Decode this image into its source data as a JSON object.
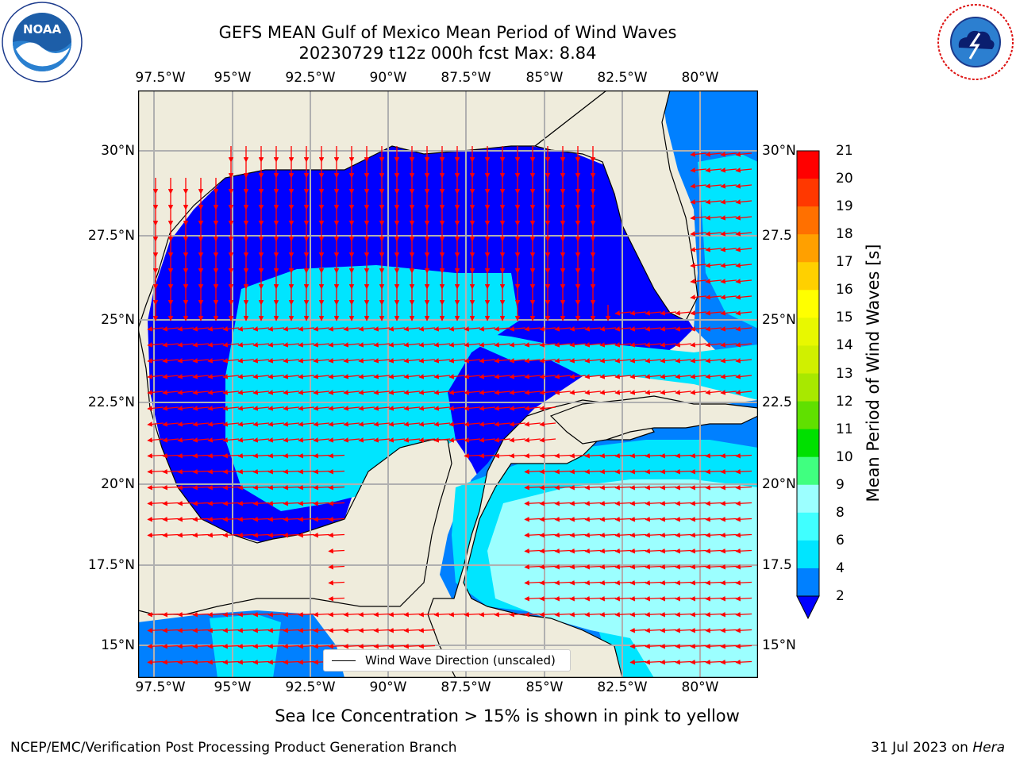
{
  "title": {
    "line1": "GEFS MEAN Gulf of Mexico Mean Period of Wind Waves",
    "line2": "20230729 t12z 000h fcst   Max: 8.84"
  },
  "logos": {
    "left": {
      "icon": "noaa-logo",
      "text": "NOAA"
    },
    "right": {
      "icon": "national-weather-service-logo"
    }
  },
  "map": {
    "lon_labels": [
      "97.5°W",
      "95°W",
      "92.5°W",
      "90°W",
      "87.5°W",
      "85°W",
      "82.5°W",
      "80°W"
    ],
    "lat_labels_left": [
      "30°N",
      "27.5°N",
      "25°N",
      "22.5°N",
      "20°N",
      "17.5°N",
      "15°N"
    ],
    "lat_labels_right": [
      "30°N",
      "27.5",
      "25°N",
      "22.5",
      "20°N",
      "17.5",
      "15°N"
    ],
    "lon_range": [
      -98,
      -78.5
    ],
    "lat_range": [
      14,
      32
    ],
    "land_color": "#efecdc",
    "vector_color": "#ff0000",
    "grid": true
  },
  "legend": {
    "label": "Wind Wave Direction (unscaled)"
  },
  "colorbar": {
    "label": "Mean Period of Wind Waves [s]",
    "ticks": [
      "2",
      "4",
      "6",
      "8",
      "9",
      "10",
      "11",
      "12",
      "13",
      "14",
      "15",
      "16",
      "17",
      "18",
      "19",
      "20",
      "21"
    ],
    "colors": [
      "#0000ff",
      "#0080ff",
      "#00e5ff",
      "#40ffff",
      "#9cffff",
      "#40ff80",
      "#00e000",
      "#60e000",
      "#a8e800",
      "#d0f000",
      "#e8f800",
      "#ffff00",
      "#ffd000",
      "#ffa000",
      "#ff7000",
      "#ff3800",
      "#ff0000"
    ]
  },
  "chart_data": {
    "type": "heatmap",
    "title": "GEFS MEAN Gulf of Mexico Mean Period of Wind Waves",
    "subtitle": "20230729 t12z 000h fcst   Max: 8.84",
    "xlabel": "",
    "ylabel": "",
    "colorbar_label": "Mean Period of Wind Waves [s]",
    "colorbar_range": [
      2,
      21
    ],
    "max_value": 8.84,
    "units": "s"
  },
  "notes": {
    "sea_ice": "Sea Ice Concentration > 15% is shown in pink to yellow"
  },
  "footer": {
    "left": "NCEP/EMC/Verification Post Processing Product Generation Branch",
    "right_prefix": "31 Jul 2023 on ",
    "right_machine": "Hera"
  }
}
